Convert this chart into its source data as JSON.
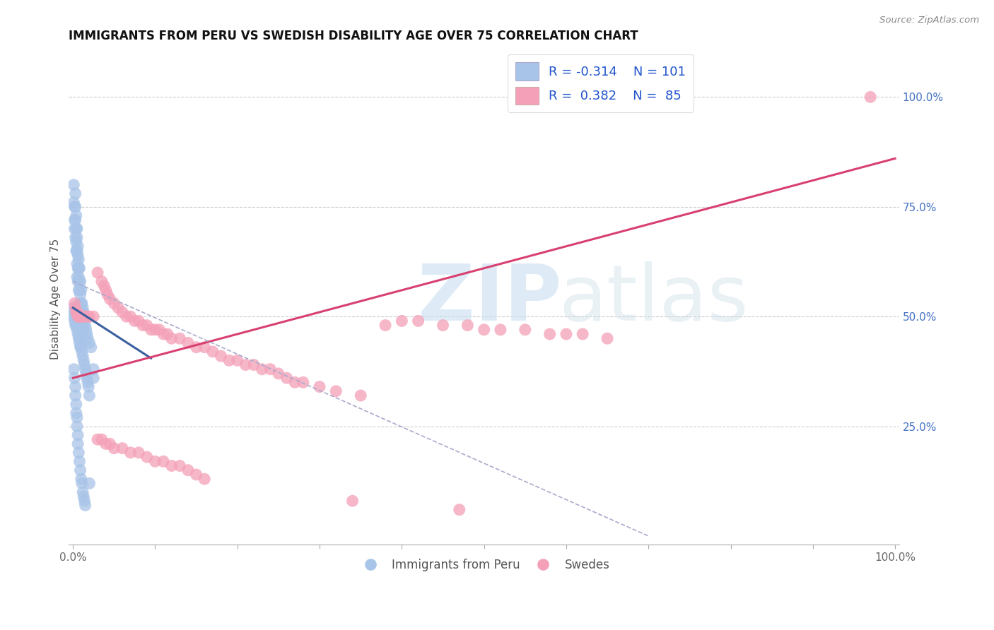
{
  "title": "IMMIGRANTS FROM PERU VS SWEDISH DISABILITY AGE OVER 75 CORRELATION CHART",
  "source": "Source: ZipAtlas.com",
  "ylabel": "Disability Age Over 75",
  "legend_blue_r": "R = -0.314",
  "legend_blue_n": "N = 101",
  "legend_pink_r": "R =  0.382",
  "legend_pink_n": "N =  85",
  "blue_color": "#a8c4e8",
  "pink_color": "#f4a0b8",
  "blue_line_color": "#3a5fa0",
  "pink_line_color": "#d84070",
  "dashed_line_color": "#aaaacc",
  "right_axis_color": "#4472c4",
  "grid_color": "#cccccc",
  "ytick_values": [
    0.25,
    0.5,
    0.75,
    1.0
  ],
  "blue_scatter_x": [
    0.001,
    0.001,
    0.002,
    0.002,
    0.002,
    0.003,
    0.003,
    0.003,
    0.003,
    0.004,
    0.004,
    0.004,
    0.004,
    0.005,
    0.005,
    0.005,
    0.005,
    0.005,
    0.006,
    0.006,
    0.006,
    0.006,
    0.007,
    0.007,
    0.007,
    0.007,
    0.008,
    0.008,
    0.008,
    0.008,
    0.009,
    0.009,
    0.009,
    0.01,
    0.01,
    0.01,
    0.011,
    0.011,
    0.012,
    0.012,
    0.013,
    0.013,
    0.014,
    0.015,
    0.016,
    0.017,
    0.018,
    0.02,
    0.022,
    0.025,
    0.001,
    0.001,
    0.002,
    0.002,
    0.003,
    0.003,
    0.004,
    0.004,
    0.005,
    0.005,
    0.006,
    0.006,
    0.007,
    0.007,
    0.008,
    0.008,
    0.009,
    0.009,
    0.01,
    0.01,
    0.011,
    0.012,
    0.013,
    0.014,
    0.015,
    0.016,
    0.017,
    0.018,
    0.019,
    0.02,
    0.001,
    0.002,
    0.003,
    0.003,
    0.004,
    0.004,
    0.005,
    0.005,
    0.006,
    0.006,
    0.007,
    0.008,
    0.009,
    0.01,
    0.011,
    0.012,
    0.013,
    0.014,
    0.015,
    0.02,
    0.025
  ],
  "blue_scatter_y": [
    0.8,
    0.76,
    0.75,
    0.72,
    0.7,
    0.78,
    0.75,
    0.72,
    0.68,
    0.73,
    0.7,
    0.67,
    0.65,
    0.7,
    0.68,
    0.65,
    0.62,
    0.59,
    0.66,
    0.64,
    0.61,
    0.58,
    0.63,
    0.61,
    0.59,
    0.56,
    0.61,
    0.58,
    0.56,
    0.53,
    0.58,
    0.55,
    0.52,
    0.56,
    0.53,
    0.5,
    0.53,
    0.5,
    0.52,
    0.49,
    0.51,
    0.48,
    0.5,
    0.48,
    0.47,
    0.46,
    0.45,
    0.44,
    0.43,
    0.36,
    0.52,
    0.5,
    0.51,
    0.49,
    0.5,
    0.48,
    0.5,
    0.48,
    0.49,
    0.47,
    0.48,
    0.46,
    0.47,
    0.45,
    0.46,
    0.44,
    0.45,
    0.43,
    0.45,
    0.43,
    0.42,
    0.41,
    0.4,
    0.39,
    0.38,
    0.37,
    0.36,
    0.35,
    0.34,
    0.32,
    0.38,
    0.36,
    0.34,
    0.32,
    0.3,
    0.28,
    0.27,
    0.25,
    0.23,
    0.21,
    0.19,
    0.17,
    0.15,
    0.13,
    0.12,
    0.1,
    0.09,
    0.08,
    0.07,
    0.12,
    0.38
  ],
  "pink_scatter_x": [
    0.002,
    0.003,
    0.004,
    0.005,
    0.006,
    0.007,
    0.008,
    0.009,
    0.01,
    0.012,
    0.015,
    0.018,
    0.02,
    0.025,
    0.03,
    0.035,
    0.038,
    0.04,
    0.042,
    0.045,
    0.05,
    0.055,
    0.06,
    0.065,
    0.07,
    0.075,
    0.08,
    0.085,
    0.09,
    0.095,
    0.1,
    0.105,
    0.11,
    0.115,
    0.12,
    0.13,
    0.14,
    0.15,
    0.16,
    0.17,
    0.18,
    0.19,
    0.2,
    0.21,
    0.22,
    0.23,
    0.24,
    0.25,
    0.26,
    0.27,
    0.28,
    0.3,
    0.32,
    0.35,
    0.38,
    0.4,
    0.42,
    0.45,
    0.48,
    0.5,
    0.52,
    0.55,
    0.58,
    0.6,
    0.62,
    0.65,
    0.03,
    0.035,
    0.04,
    0.045,
    0.05,
    0.06,
    0.07,
    0.08,
    0.09,
    0.1,
    0.11,
    0.12,
    0.13,
    0.14,
    0.15,
    0.16,
    0.97,
    0.34,
    0.47
  ],
  "pink_scatter_y": [
    0.53,
    0.52,
    0.51,
    0.51,
    0.5,
    0.5,
    0.5,
    0.5,
    0.5,
    0.5,
    0.5,
    0.5,
    0.5,
    0.5,
    0.6,
    0.58,
    0.57,
    0.56,
    0.55,
    0.54,
    0.53,
    0.52,
    0.51,
    0.5,
    0.5,
    0.49,
    0.49,
    0.48,
    0.48,
    0.47,
    0.47,
    0.47,
    0.46,
    0.46,
    0.45,
    0.45,
    0.44,
    0.43,
    0.43,
    0.42,
    0.41,
    0.4,
    0.4,
    0.39,
    0.39,
    0.38,
    0.38,
    0.37,
    0.36,
    0.35,
    0.35,
    0.34,
    0.33,
    0.32,
    0.48,
    0.49,
    0.49,
    0.48,
    0.48,
    0.47,
    0.47,
    0.47,
    0.46,
    0.46,
    0.46,
    0.45,
    0.22,
    0.22,
    0.21,
    0.21,
    0.2,
    0.2,
    0.19,
    0.19,
    0.18,
    0.17,
    0.17,
    0.16,
    0.16,
    0.15,
    0.14,
    0.13,
    1.0,
    0.08,
    0.06
  ],
  "blue_trend_x": [
    0.0,
    0.095
  ],
  "blue_trend_y": [
    0.52,
    0.405
  ],
  "pink_trend_x": [
    0.0,
    1.0
  ],
  "pink_trend_y": [
    0.36,
    0.86
  ],
  "dashed_trend_x": [
    0.0,
    0.7
  ],
  "dashed_trend_y": [
    0.58,
    0.0
  ],
  "xlim": [
    -0.005,
    1.005
  ],
  "ylim": [
    -0.02,
    1.1
  ]
}
